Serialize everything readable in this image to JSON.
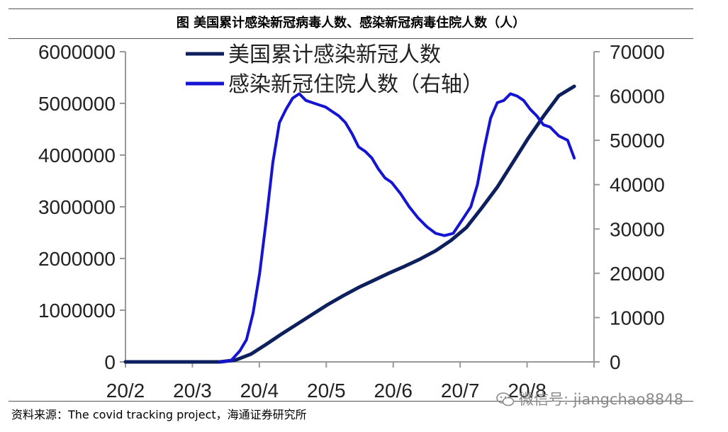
{
  "header": {
    "title": "图  美国累计感染新冠病毒人数、感染新冠病毒住院人数（人）"
  },
  "footer": {
    "source": "资料来源：The covid tracking project，海通证券研究所",
    "watermark": "微信号: jiangchao8848",
    "watermark_icon": "wechat-icon"
  },
  "colors": {
    "cumulative": "#0d1f5c",
    "hospitalized": "#1414d2",
    "axis": "#999999"
  },
  "chart_data": {
    "type": "line",
    "x_ticks": [
      "20/2",
      "20/3",
      "20/4",
      "20/5",
      "20/6",
      "20/7",
      "20/8"
    ],
    "x_range": [
      "2020-02-01",
      "2020-09-01"
    ],
    "ylim_left": [
      0,
      6000000
    ],
    "yticks_left": [
      "0",
      "1000000",
      "2000000",
      "3000000",
      "4000000",
      "5000000",
      "6000000"
    ],
    "ylim_right": [
      0,
      70000
    ],
    "yticks_right": [
      "0",
      "10000",
      "20000",
      "30000",
      "40000",
      "50000",
      "60000",
      "70000"
    ],
    "grid": false,
    "legend_position": "top-center",
    "series": [
      {
        "name": "美国累计感染新冠人数",
        "axis": "left",
        "x": [
          "2020-02-01",
          "2020-03-01",
          "2020-03-15",
          "2020-03-22",
          "2020-03-29",
          "2020-04-05",
          "2020-04-12",
          "2020-04-19",
          "2020-04-26",
          "2020-05-03",
          "2020-05-10",
          "2020-05-17",
          "2020-05-24",
          "2020-05-31",
          "2020-06-07",
          "2020-06-14",
          "2020-06-21",
          "2020-06-28",
          "2020-07-05",
          "2020-07-12",
          "2020-07-19",
          "2020-07-26",
          "2020-08-02",
          "2020-08-09",
          "2020-08-16",
          "2020-08-23"
        ],
        "y": [
          0,
          0,
          0,
          35000,
          150000,
          340000,
          540000,
          730000,
          920000,
          1110000,
          1280000,
          1440000,
          1580000,
          1720000,
          1850000,
          1990000,
          2150000,
          2350000,
          2600000,
          2980000,
          3380000,
          3850000,
          4320000,
          4750000,
          5150000,
          5330000
        ]
      },
      {
        "name": "感染新冠住院人数（右轴）",
        "axis": "right",
        "x": [
          "2020-03-15",
          "2020-03-20",
          "2020-03-24",
          "2020-03-27",
          "2020-03-30",
          "2020-04-02",
          "2020-04-05",
          "2020-04-08",
          "2020-04-11",
          "2020-04-14",
          "2020-04-17",
          "2020-04-20",
          "2020-04-23",
          "2020-04-26",
          "2020-04-29",
          "2020-05-02",
          "2020-05-05",
          "2020-05-08",
          "2020-05-11",
          "2020-05-14",
          "2020-05-17",
          "2020-05-20",
          "2020-05-23",
          "2020-05-26",
          "2020-05-29",
          "2020-06-01",
          "2020-06-05",
          "2020-06-09",
          "2020-06-13",
          "2020-06-17",
          "2020-06-21",
          "2020-06-25",
          "2020-06-29",
          "2020-07-03",
          "2020-07-07",
          "2020-07-10",
          "2020-07-13",
          "2020-07-16",
          "2020-07-19",
          "2020-07-22",
          "2020-07-25",
          "2020-07-28",
          "2020-07-31",
          "2020-08-03",
          "2020-08-06",
          "2020-08-09",
          "2020-08-12",
          "2020-08-16",
          "2020-08-20",
          "2020-08-23"
        ],
        "y": [
          0,
          300,
          2500,
          5000,
          11000,
          20000,
          32000,
          45000,
          54000,
          57000,
          59500,
          60500,
          59000,
          58500,
          58000,
          57500,
          56500,
          55500,
          54000,
          51500,
          48500,
          47500,
          46000,
          43500,
          41500,
          40500,
          38000,
          35000,
          32500,
          30500,
          29000,
          28500,
          29000,
          32000,
          35000,
          40000,
          48000,
          55000,
          58500,
          59000,
          60500,
          60000,
          59000,
          57000,
          55500,
          53500,
          53000,
          51000,
          50000,
          46000
        ]
      }
    ]
  }
}
